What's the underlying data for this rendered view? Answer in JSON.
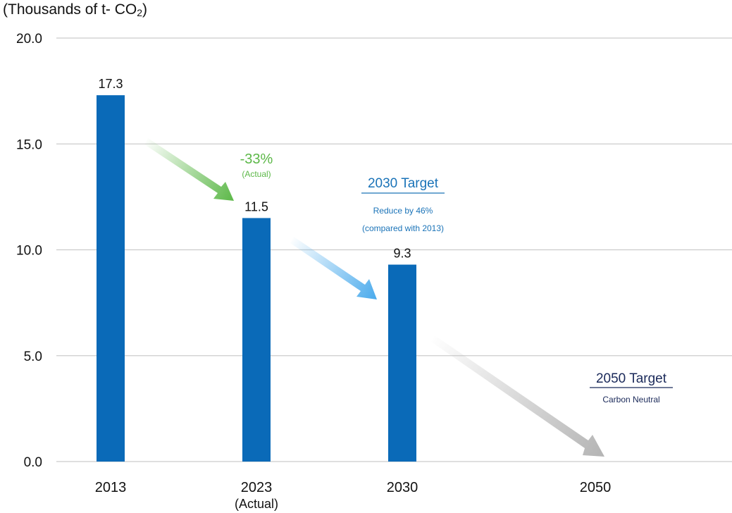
{
  "chart_data": {
    "type": "bar",
    "y_unit_label": "(Thousands of t- CO",
    "y_unit_subscript": "2",
    "y_unit_close": ")",
    "categories": [
      "2013",
      "2023",
      "2030",
      "2050"
    ],
    "category_sublabels": [
      "",
      "(Actual)",
      "",
      ""
    ],
    "values": [
      17.3,
      11.5,
      9.3,
      null
    ],
    "value_labels": [
      "17.3",
      "11.5",
      "9.3",
      ""
    ],
    "ylim": [
      0,
      20
    ],
    "yticks": [
      "0.0",
      "5.0",
      "10.0",
      "15.0",
      "20.0"
    ],
    "ytick_values": [
      0,
      5,
      10,
      15,
      20
    ],
    "grid": true,
    "bar_color": "#0a6ab8",
    "annotations": {
      "reduction_pct": "-33%",
      "reduction_note": "(Actual)",
      "target_2030_title": "2030 Target",
      "target_2030_line1": "Reduce by 46%",
      "target_2030_line2": "(compared with 2013)",
      "target_2050_title": "2050 Target",
      "target_2050_note": "Carbon Neutral"
    },
    "colors": {
      "green": "#5cb848",
      "blue_text": "#1a73b8",
      "blue_arrow": "#49aaec",
      "navy": "#1b2a5a",
      "gray_arrow": "#b4b4b4",
      "grid": "#cccccc"
    }
  }
}
